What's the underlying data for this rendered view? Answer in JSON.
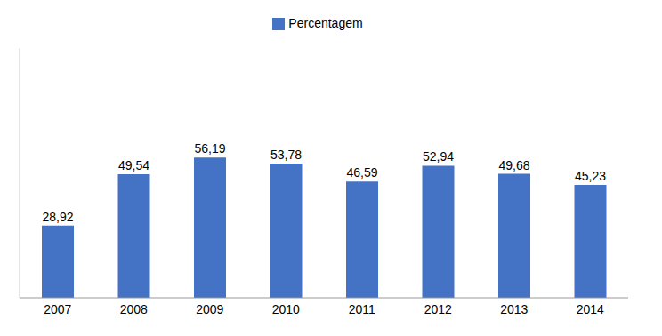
{
  "chart_data": {
    "type": "bar",
    "categories": [
      "2007",
      "2008",
      "2009",
      "2010",
      "2011",
      "2012",
      "2013",
      "2014"
    ],
    "series": [
      {
        "name": "Percentagem",
        "color": "#4472c4",
        "values": [
          28.92,
          49.54,
          56.19,
          53.78,
          46.59,
          52.94,
          49.68,
          45.23
        ],
        "value_labels": [
          "28,92",
          "49,54",
          "56,19",
          "53,78",
          "46,59",
          "52,94",
          "49,68",
          "45,23"
        ]
      }
    ],
    "ylim": [
      0,
      100
    ],
    "data_labels": true,
    "tick_labels": "x",
    "legend": "top"
  }
}
